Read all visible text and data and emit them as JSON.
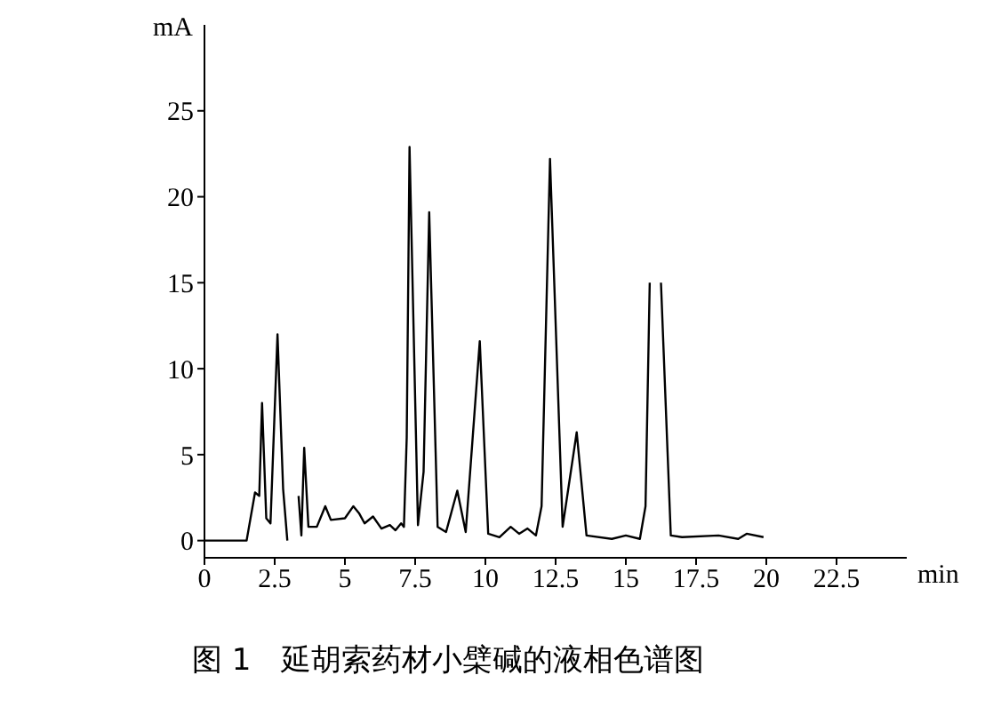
{
  "chart_data": {
    "type": "line",
    "title": "图 1　延胡索药材小檗碱的液相色谱图",
    "xlabel": "min",
    "ylabel": "mA",
    "xlim": [
      0,
      25
    ],
    "xticks": [
      0,
      2.5,
      5,
      7.5,
      10,
      12.5,
      15,
      17.5,
      20,
      22.5
    ],
    "ylim": [
      -1,
      30
    ],
    "yticks": [
      0,
      5,
      10,
      15,
      20,
      25
    ],
    "grid": false,
    "legend": false,
    "marker": "none",
    "line_style": "solid",
    "series": [
      {
        "color": "#000000",
        "x": [
          0,
          1.5,
          1.8,
          1.95,
          2.05,
          2.2,
          2.35,
          2.6,
          2.8,
          2.95,
          3.1,
          3.25,
          3.35,
          3.45,
          3.55,
          3.7,
          4.0,
          4.3,
          4.5,
          5.0,
          5.3,
          5.5,
          5.7,
          6.0,
          6.3,
          6.6,
          6.8,
          7.0,
          7.1,
          7.2,
          7.3,
          7.6,
          7.8,
          8.0,
          8.3,
          8.6,
          9.0,
          9.3,
          9.8,
          10.1,
          10.5,
          10.9,
          11.2,
          11.5,
          11.8,
          12.0,
          12.3,
          12.75,
          13.25,
          13.6,
          14.5,
          15.0,
          15.5,
          15.7,
          15.85,
          16.0,
          16.25,
          16.6,
          17.0,
          18.3,
          19.0,
          19.3,
          19.9
        ],
        "values": [
          0,
          0,
          2.8,
          2.6,
          8,
          1.3,
          1.0,
          12,
          3,
          0,
          null,
          null,
          2.6,
          0.3,
          5.4,
          0.8,
          0.8,
          2,
          1.2,
          1.3,
          2,
          1.6,
          1.0,
          1.4,
          0.7,
          0.9,
          0.6,
          1.0,
          0.8,
          6,
          22.9,
          0.9,
          4,
          19.1,
          0.8,
          0.5,
          2.9,
          0.5,
          11.6,
          0.4,
          0.2,
          0.8,
          0.4,
          0.7,
          0.3,
          2,
          22.2,
          0.8,
          6.3,
          0.3,
          0.1,
          0.3,
          0.1,
          2,
          15,
          null,
          15,
          0.3,
          0.2,
          0.3,
          0.1,
          0.4,
          0.2
        ]
      }
    ]
  }
}
